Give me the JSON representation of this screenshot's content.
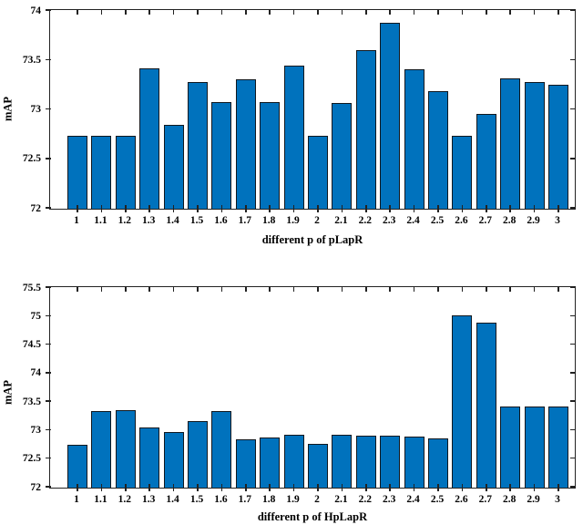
{
  "figure": {
    "background_color": "#ffffff",
    "bar_fill_color": "#0072BD",
    "bar_edge_color": "#10181f",
    "axis_color": "#222222",
    "text_color": "#000000"
  },
  "chart_data": [
    {
      "type": "bar",
      "title": "",
      "xlabel": "different p of pLapR",
      "ylabel": "mAP",
      "categories": [
        "1",
        "1.1",
        "1.2",
        "1.3",
        "1.4",
        "1.5",
        "1.6",
        "1.7",
        "1.8",
        "1.9",
        "2",
        "2.1",
        "2.2",
        "2.3",
        "2.4",
        "2.5",
        "2.6",
        "2.7",
        "2.8",
        "2.9",
        "3"
      ],
      "values": [
        72.74,
        72.74,
        72.74,
        73.42,
        72.85,
        73.28,
        73.08,
        73.31,
        73.08,
        73.45,
        72.74,
        73.07,
        73.6,
        73.88,
        73.41,
        73.19,
        72.74,
        72.96,
        73.32,
        73.28,
        73.25
      ],
      "ylim": [
        72,
        74
      ],
      "yticks": [
        "72",
        "72.5",
        "73",
        "73.5",
        "74"
      ],
      "grid": "off",
      "legend": "none"
    },
    {
      "type": "bar",
      "title": "",
      "xlabel": "different p of HpLapR",
      "ylabel": "mAP",
      "categories": [
        "1",
        "1.1",
        "1.2",
        "1.3",
        "1.4",
        "1.5",
        "1.6",
        "1.7",
        "1.8",
        "1.9",
        "2",
        "2.1",
        "2.2",
        "2.3",
        "2.4",
        "2.5",
        "2.6",
        "2.7",
        "2.8",
        "2.9",
        "3"
      ],
      "values": [
        72.75,
        73.34,
        73.36,
        73.05,
        72.97,
        73.16,
        73.34,
        72.84,
        72.88,
        72.92,
        72.76,
        72.92,
        72.91,
        72.91,
        72.89,
        72.86,
        75.02,
        74.89,
        73.42,
        73.42,
        73.42
      ],
      "ylim": [
        72,
        75.5
      ],
      "yticks": [
        "72",
        "72.5",
        "73",
        "73.5",
        "74",
        "74.5",
        "75",
        "75.5"
      ],
      "grid": "off",
      "legend": "none"
    }
  ]
}
